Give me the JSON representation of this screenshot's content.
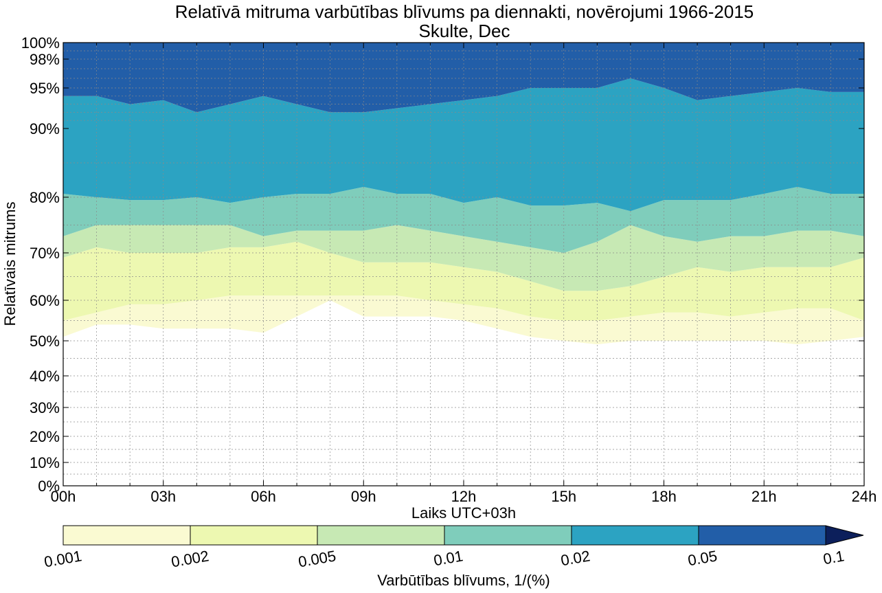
{
  "chart_data": {
    "type": "contour",
    "title": "Relatīvā mitruma varbūtības blīvums pa diennakti, novērojumi 1966-2015",
    "subtitle": "Skulte, Dec",
    "xlabel": "Laiks UTC+03h",
    "ylabel": "Relatīvais mitrums",
    "x_ticks": [
      "00h",
      "03h",
      "06h",
      "09h",
      "12h",
      "15h",
      "18h",
      "21h",
      "24h"
    ],
    "x_tick_hours": [
      0,
      3,
      6,
      9,
      12,
      15,
      18,
      21,
      24
    ],
    "xlim": [
      0,
      24
    ],
    "y_ticks": [
      "0%",
      "10%",
      "20%",
      "30%",
      "40%",
      "50%",
      "60%",
      "70%",
      "80%",
      "90%",
      "95%",
      "98%",
      "100%"
    ],
    "y_tick_values": [
      0,
      10,
      20,
      30,
      40,
      50,
      60,
      70,
      80,
      90,
      95,
      98,
      100
    ],
    "ylim": [
      0,
      100
    ],
    "y_scale": "nonlinear (stretched near 100%)",
    "grid": true,
    "hours": [
      0,
      1,
      2,
      3,
      4,
      5,
      6,
      7,
      8,
      9,
      10,
      11,
      12,
      13,
      14,
      15,
      16,
      17,
      18,
      19,
      20,
      21,
      22,
      23,
      24
    ],
    "density_levels": [
      0.001,
      0.002,
      0.005,
      0.01,
      0.02,
      0.05,
      0.1
    ],
    "level_colors": [
      "#fafad2",
      "#edf8b1",
      "#c7e9b4",
      "#7fcdbb",
      "#2ca3c2",
      "#225ea8",
      "#0c1f5b"
    ],
    "band_boundaries_percent_rh": [
      {
        "level": 0.001,
        "values": [
          51,
          54,
          54,
          53,
          53,
          53,
          52,
          56,
          60,
          56,
          56,
          56,
          55,
          53,
          51,
          50,
          49,
          50,
          50,
          50,
          50,
          50,
          49,
          50,
          51
        ]
      },
      {
        "level": 0.002,
        "values": [
          55,
          57,
          59,
          59,
          60,
          61,
          61,
          61,
          61,
          61,
          61,
          60,
          59,
          58,
          56,
          55,
          55,
          56,
          57,
          57,
          56,
          57,
          58,
          58,
          55
        ]
      },
      {
        "level": 0.005,
        "values": [
          69,
          71,
          70,
          70,
          70,
          71,
          71,
          72,
          70,
          68,
          68,
          68,
          67,
          66,
          64,
          62,
          62,
          63,
          65,
          67,
          66,
          67,
          67,
          67,
          69
        ]
      },
      {
        "level": 0.01,
        "values": [
          73,
          75,
          75,
          75,
          75,
          75,
          73,
          74,
          74,
          74,
          75,
          74,
          73,
          72,
          71,
          70,
          72,
          75,
          73,
          72,
          73,
          73,
          74,
          74,
          73
        ]
      },
      {
        "level": 0.02,
        "values": [
          80.5,
          80,
          79.5,
          79.5,
          80,
          79,
          80,
          80.5,
          80.5,
          81.5,
          80.5,
          80.5,
          79,
          80,
          78.5,
          78.5,
          79,
          77.5,
          79.5,
          79.5,
          79.5,
          80.5,
          81.5,
          80.5,
          80.5
        ]
      },
      {
        "level": 0.05,
        "values": [
          94,
          94,
          93,
          93.5,
          92,
          93,
          94,
          93,
          92,
          92,
          92.5,
          93,
          93.5,
          94,
          95,
          95,
          95,
          96,
          95,
          93.5,
          94,
          94.5,
          95,
          94.5,
          94.5
        ]
      }
    ],
    "colorbar": {
      "label": "Varbūtības blīvums, 1/(%)",
      "tick_labels": [
        "0.001",
        "0.002",
        "0.005",
        "0.01",
        "0.02",
        "0.05",
        "0.1"
      ],
      "extend": "max"
    }
  }
}
